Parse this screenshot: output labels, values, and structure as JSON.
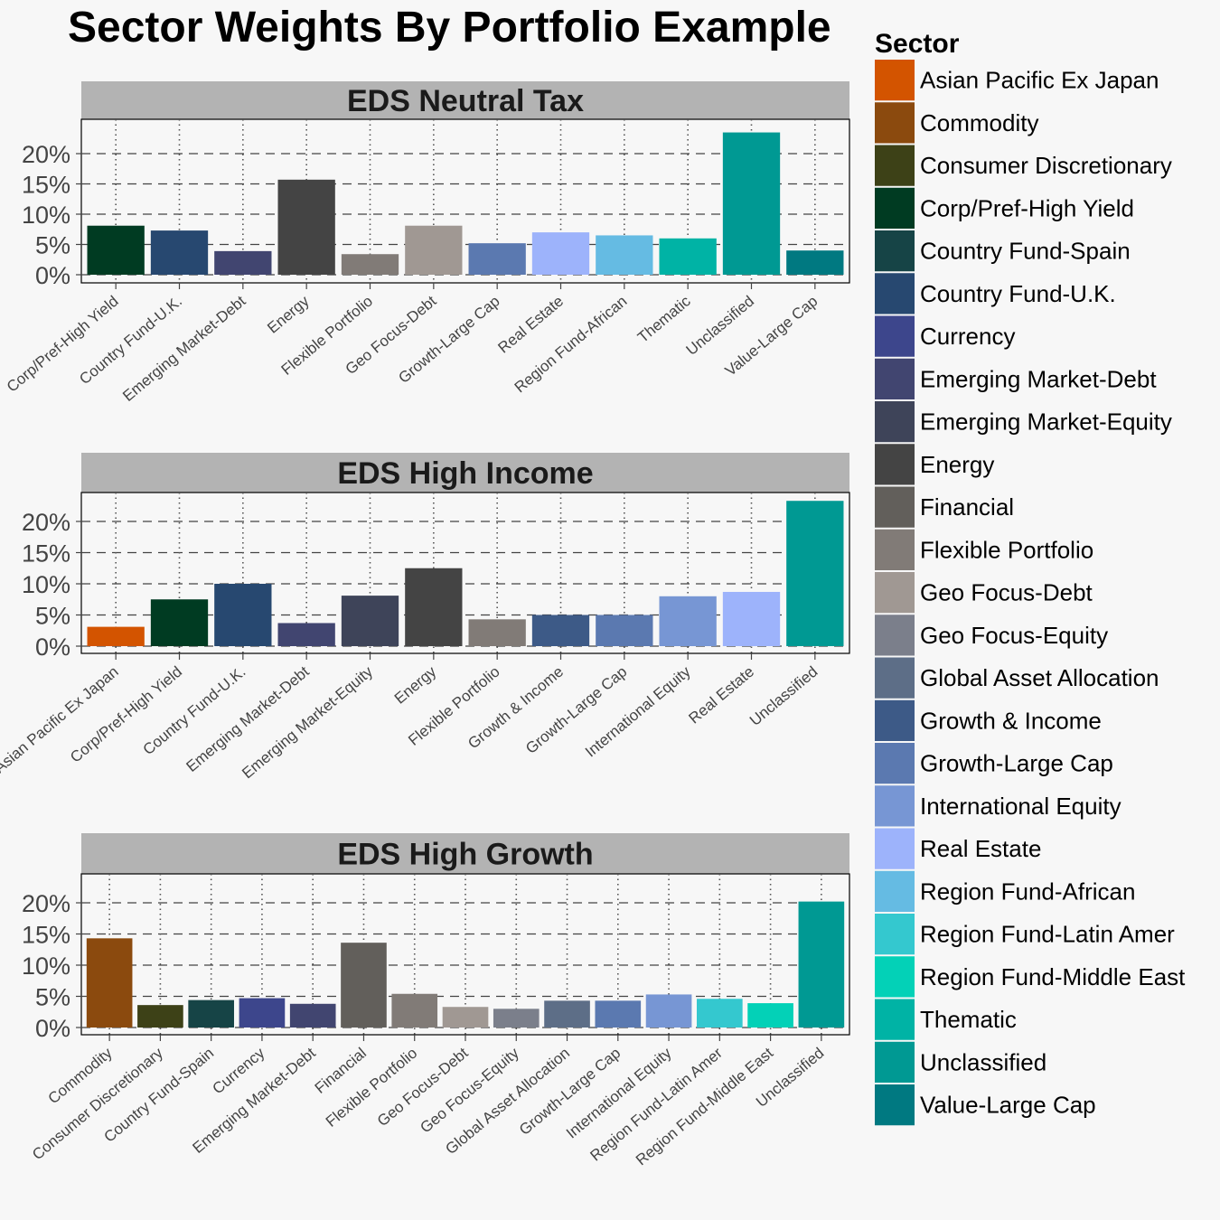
{
  "colors": {
    "Asian Pacific Ex Japan": "#d35400",
    "Commodity": "#8b4a0e",
    "Consumer Discretionary": "#3d4117",
    "Corp/Pref-High Yield": "#003b22",
    "Country Fund-Spain": "#164446",
    "Country Fund-U.K.": "#274870",
    "Currency": "#3d468c",
    "Emerging Market-Debt": "#414570",
    "Emerging Market-Equity": "#3e4459",
    "Energy": "#444444",
    "Financial": "#625f5b",
    "Flexible Portfolio": "#817b77",
    "Geo Focus-Debt": "#a09893",
    "Geo Focus-Equity": "#7b7f8b",
    "Global Asset Allocation": "#5d6e87",
    "Growth & Income": "#3d5a87",
    "Growth-Large Cap": "#5b79b0",
    "International Equity": "#7796d4",
    "Real Estate": "#9db3fb",
    "Region Fund-African": "#65bbe3",
    "Region Fund-Latin Amer": "#34c8cf",
    "Region Fund-Middle East": "#03d1b7",
    "Thematic": "#00b3a5",
    "Unclassified": "#009993",
    "Value-Large Cap": "#007981"
  },
  "chart_data": {
    "type": "bar",
    "title": "Sector Weights By Portfolio Example",
    "legend_title": "Sector",
    "legend_position": "right",
    "y_ticks": [
      "0%",
      "5%",
      "10%",
      "15%",
      "20%"
    ],
    "panels": [
      {
        "name": "EDS Neutral Tax",
        "categories": [
          "Corp/Pref-High Yield",
          "Country Fund-U.K.",
          "Emerging Market-Debt",
          "Energy",
          "Flexible Portfolio",
          "Geo Focus-Debt",
          "Growth-Large Cap",
          "Real Estate",
          "Region Fund-African",
          "Thematic",
          "Unclassified",
          "Value-Large Cap"
        ],
        "values": [
          8.1,
          7.3,
          3.9,
          15.7,
          3.4,
          8.1,
          5.2,
          7.0,
          6.5,
          6.0,
          23.5,
          4.0
        ],
        "ylim": [
          0,
          24.5
        ]
      },
      {
        "name": "EDS High Income",
        "categories": [
          "Asian Pacific Ex Japan",
          "Corp/Pref-High Yield",
          "Country Fund-U.K.",
          "Emerging Market-Debt",
          "Emerging Market-Equity",
          "Energy",
          "Flexible Portfolio",
          "Growth & Income",
          "Growth-Large Cap",
          "International Equity",
          "Real Estate",
          "Unclassified"
        ],
        "values": [
          3.1,
          7.5,
          10.0,
          3.7,
          8.1,
          12.5,
          4.3,
          5.0,
          5.0,
          8.0,
          8.7,
          23.3
        ],
        "ylim": [
          0,
          24.5
        ]
      },
      {
        "name": "EDS High Growth",
        "categories": [
          "Commodity",
          "Consumer Discretionary",
          "Country Fund-Spain",
          "Currency",
          "Emerging Market-Debt",
          "Financial",
          "Flexible Portfolio",
          "Geo Focus-Debt",
          "Geo Focus-Equity",
          "Global Asset Allocation",
          "Growth-Large Cap",
          "International Equity",
          "Region Fund-Latin Amer",
          "Region Fund-Middle East",
          "Unclassified"
        ],
        "values": [
          14.3,
          3.6,
          4.4,
          4.7,
          3.8,
          13.6,
          5.4,
          3.3,
          3.0,
          4.3,
          4.3,
          5.3,
          4.6,
          3.9,
          20.2
        ],
        "ylim": [
          0,
          24.5
        ]
      }
    ],
    "legend": [
      "Asian Pacific Ex Japan",
      "Commodity",
      "Consumer Discretionary",
      "Corp/Pref-High Yield",
      "Country Fund-Spain",
      "Country Fund-U.K.",
      "Currency",
      "Emerging Market-Debt",
      "Emerging Market-Equity",
      "Energy",
      "Financial",
      "Flexible Portfolio",
      "Geo Focus-Debt",
      "Geo Focus-Equity",
      "Global Asset Allocation",
      "Growth & Income",
      "Growth-Large Cap",
      "International Equity",
      "Real Estate",
      "Region Fund-African",
      "Region Fund-Latin Amer",
      "Region Fund-Middle East",
      "Thematic",
      "Unclassified",
      "Value-Large Cap"
    ]
  }
}
